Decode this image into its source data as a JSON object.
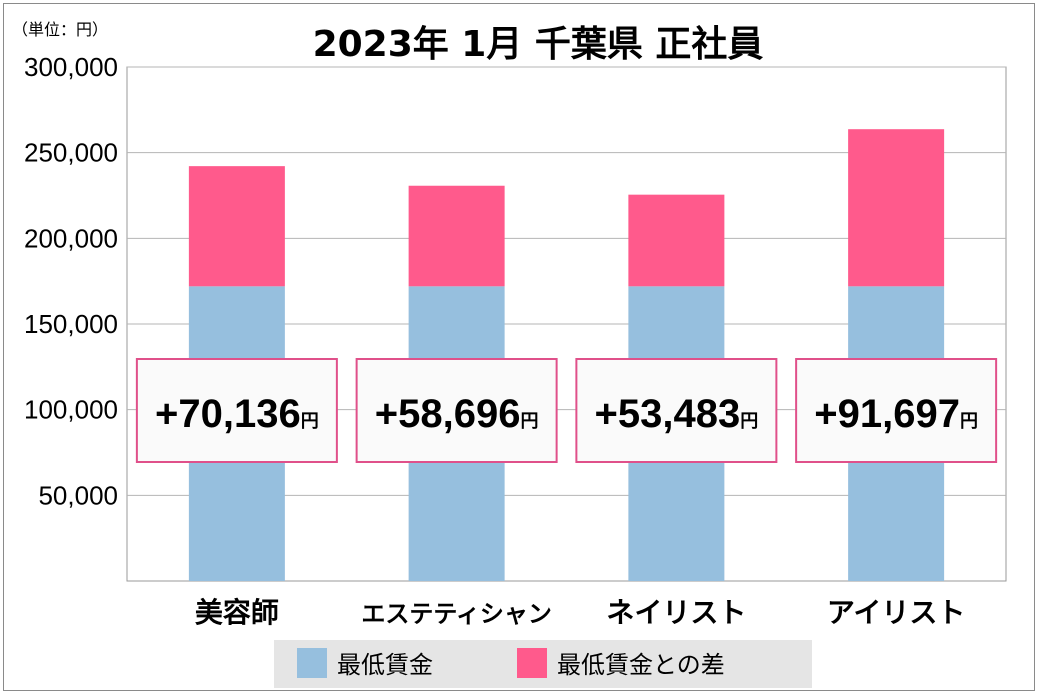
{
  "unit_label": "（単位：円）",
  "chart_data": {
    "type": "bar",
    "stacked": true,
    "title": "2023年 1月  千葉県  正社員",
    "categories": [
      "美容師",
      "エステティシャン",
      "ネイリスト",
      "アイリスト"
    ],
    "series": [
      {
        "name": "最低賃金",
        "values": [
          172000,
          172000,
          172000,
          172000
        ],
        "color": "#96bfde"
      },
      {
        "name": "最低賃金との差",
        "values": [
          70136,
          58696,
          53483,
          91697
        ],
        "color": "#ff5a8c"
      }
    ],
    "difference_labels": [
      {
        "amount": "+70,136",
        "unit": "円"
      },
      {
        "amount": "+58,696",
        "unit": "円"
      },
      {
        "amount": "+53,483",
        "unit": "円"
      },
      {
        "amount": "+91,697",
        "unit": "円"
      }
    ],
    "ylim": [
      0,
      300000
    ],
    "yticks": [
      50000,
      100000,
      150000,
      200000,
      250000,
      300000
    ],
    "ytick_labels": [
      "50,000",
      "100,000",
      "150,000",
      "200,000",
      "250,000",
      "300,000"
    ],
    "grid": true,
    "legend_position": "bottom",
    "label_box_border": "#e0508a"
  }
}
